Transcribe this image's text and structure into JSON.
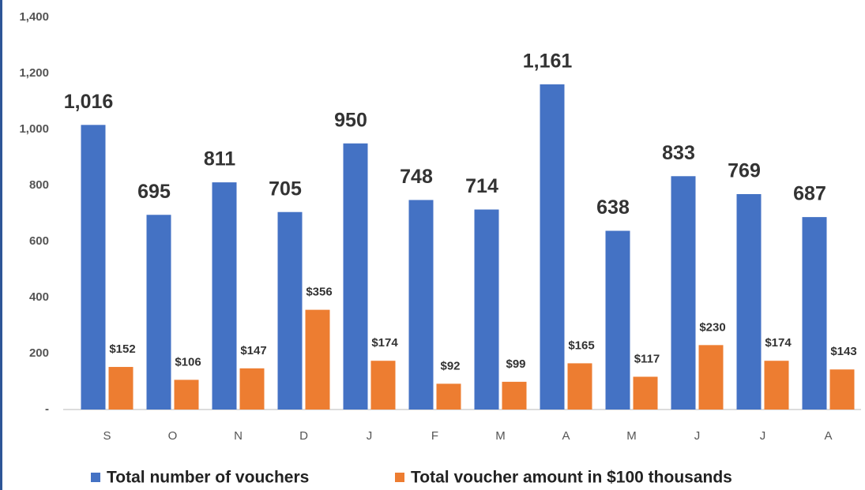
{
  "chart_data": {
    "type": "bar",
    "categories": [
      "S",
      "O",
      "N",
      "D",
      "J",
      "F",
      "M",
      "A",
      "M",
      "J",
      "J",
      "A"
    ],
    "series": [
      {
        "name": "Total number of vouchers",
        "color": "#4472c4",
        "values": [
          1016,
          695,
          811,
          705,
          950,
          748,
          714,
          1161,
          638,
          833,
          769,
          687
        ],
        "value_labels": [
          "1,016",
          "695",
          "811",
          "705",
          "950",
          "748",
          "714",
          "1,161",
          "638",
          "833",
          "769",
          "687"
        ]
      },
      {
        "name": "Total voucher amount in $100 thousands",
        "color": "#ed7d31",
        "values": [
          152,
          106,
          147,
          356,
          174,
          92,
          99,
          165,
          117,
          230,
          174,
          143
        ],
        "value_labels": [
          "$152",
          "$106",
          "$147",
          "$356",
          "$174",
          "$92",
          "$99",
          "$165",
          "$117",
          "$230",
          "$174",
          "$143"
        ]
      }
    ],
    "ylim": [
      0,
      1400
    ],
    "yticks": [
      {
        "value": 0,
        "label": "-"
      },
      200,
      400,
      600,
      800,
      {
        "value": 1000,
        "label": "1,000"
      },
      {
        "value": 1200,
        "label": "1,200"
      },
      {
        "value": 1400,
        "label": "1,400"
      }
    ],
    "grid": false,
    "legend": "bottom"
  }
}
